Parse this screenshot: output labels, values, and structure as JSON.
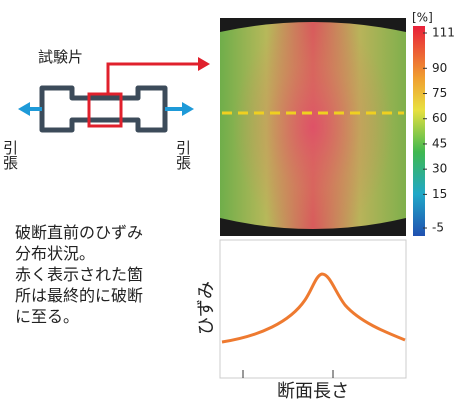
{
  "specimen_label": "試験片",
  "pull_left": "引張",
  "pull_right": "引張",
  "description": [
    "破断直前のひずみ",
    "分布状況。",
    "赤く表示された箇",
    "所は最終的に破断",
    "に至る。"
  ],
  "colorbar": {
    "unit": "[%]",
    "ticks": [
      111,
      90,
      75,
      60,
      45,
      30,
      15,
      -5
    ]
  },
  "plot": {
    "y_label": "ひずみ",
    "x_label": "断面長さ"
  }
}
